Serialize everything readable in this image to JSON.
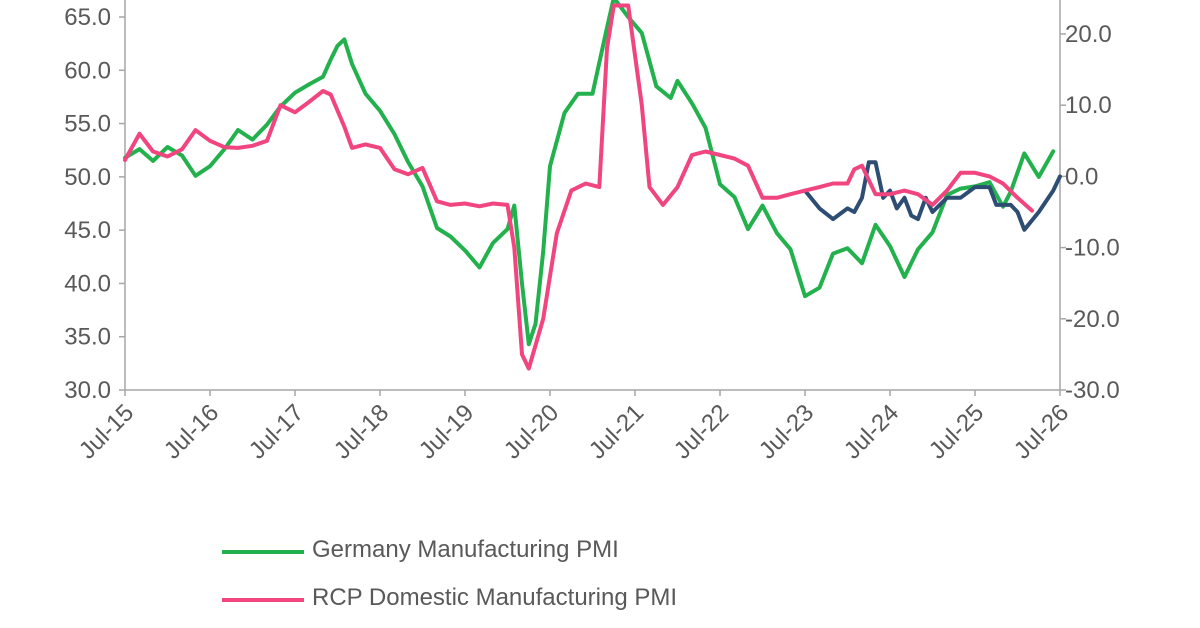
{
  "chart_data": {
    "type": "line",
    "colors": {
      "germany": "#22b14c",
      "rcp": "#f0457e",
      "third": "#2e4d73",
      "axis": "#a6a6a6",
      "text": "#595959"
    },
    "x_labels": [
      "Jul-15",
      "Jul-16",
      "Jul-17",
      "Jul-18",
      "Jul-19",
      "Jul-20",
      "Jul-21",
      "Jul-22",
      "Jul-23",
      "Jul-24",
      "Jul-25",
      "Jul-26"
    ],
    "x_range": [
      2015.5,
      2026.5
    ],
    "left_axis": {
      "ticks": [
        "30.0",
        "35.0",
        "40.0",
        "45.0",
        "50.0",
        "55.0",
        "60.0",
        "65.0"
      ],
      "range": [
        30,
        65
      ]
    },
    "right_axis": {
      "ticks": [
        "-30.0",
        "-20.0",
        "-10.0",
        "0.0",
        "10.0",
        "20.0"
      ],
      "range": [
        -30,
        20
      ]
    },
    "series": [
      {
        "key": "germany",
        "name": "Germany Manufacturing PMI",
        "axis": "left",
        "points": [
          [
            2015.5,
            51.8
          ],
          [
            2015.67,
            52.6
          ],
          [
            2015.83,
            51.5
          ],
          [
            2016.0,
            52.8
          ],
          [
            2016.17,
            52.0
          ],
          [
            2016.33,
            50.1
          ],
          [
            2016.5,
            51.0
          ],
          [
            2016.67,
            52.6
          ],
          [
            2016.83,
            54.4
          ],
          [
            2017.0,
            53.5
          ],
          [
            2017.17,
            54.9
          ],
          [
            2017.33,
            56.6
          ],
          [
            2017.5,
            57.9
          ],
          [
            2017.67,
            58.7
          ],
          [
            2017.83,
            59.4
          ],
          [
            2017.92,
            61.0
          ],
          [
            2018.0,
            62.3
          ],
          [
            2018.08,
            62.9
          ],
          [
            2018.17,
            60.6
          ],
          [
            2018.33,
            57.8
          ],
          [
            2018.5,
            56.2
          ],
          [
            2018.67,
            54.0
          ],
          [
            2018.83,
            51.4
          ],
          [
            2019.0,
            49.1
          ],
          [
            2019.17,
            45.2
          ],
          [
            2019.33,
            44.4
          ],
          [
            2019.5,
            43.1
          ],
          [
            2019.67,
            41.5
          ],
          [
            2019.83,
            43.8
          ],
          [
            2020.0,
            45.1
          ],
          [
            2020.08,
            47.3
          ],
          [
            2020.17,
            40.0
          ],
          [
            2020.25,
            34.3
          ],
          [
            2020.33,
            36.2
          ],
          [
            2020.42,
            43.0
          ],
          [
            2020.5,
            51.0
          ],
          [
            2020.67,
            56.0
          ],
          [
            2020.83,
            57.8
          ],
          [
            2021.0,
            57.8
          ],
          [
            2021.17,
            64.0
          ],
          [
            2021.25,
            66.8
          ],
          [
            2021.42,
            65.0
          ],
          [
            2021.58,
            63.5
          ],
          [
            2021.75,
            58.5
          ],
          [
            2021.92,
            57.4
          ],
          [
            2022.0,
            59.0
          ],
          [
            2022.17,
            56.9
          ],
          [
            2022.33,
            54.6
          ],
          [
            2022.5,
            49.3
          ],
          [
            2022.67,
            48.1
          ],
          [
            2022.83,
            45.1
          ],
          [
            2023.0,
            47.3
          ],
          [
            2023.17,
            44.7
          ],
          [
            2023.33,
            43.2
          ],
          [
            2023.5,
            38.8
          ],
          [
            2023.67,
            39.6
          ],
          [
            2023.83,
            42.8
          ],
          [
            2024.0,
            43.3
          ],
          [
            2024.17,
            41.9
          ],
          [
            2024.33,
            45.5
          ],
          [
            2024.5,
            43.5
          ],
          [
            2024.67,
            40.6
          ],
          [
            2024.83,
            43.2
          ],
          [
            2025.0,
            44.8
          ],
          [
            2025.17,
            48.3
          ],
          [
            2025.33,
            48.9
          ],
          [
            2025.5,
            49.1
          ],
          [
            2025.67,
            49.5
          ],
          [
            2025.83,
            47.2
          ],
          [
            2025.92,
            48.6
          ],
          [
            2026.08,
            52.2
          ],
          [
            2026.25,
            50.0
          ],
          [
            2026.42,
            52.4
          ]
        ]
      },
      {
        "key": "rcp",
        "name": "RCP Domestic Manufacturing PMI",
        "axis": "right",
        "points": [
          [
            2015.5,
            2.3
          ],
          [
            2015.67,
            6.0
          ],
          [
            2015.83,
            3.5
          ],
          [
            2016.0,
            2.8
          ],
          [
            2016.17,
            3.8
          ],
          [
            2016.33,
            6.5
          ],
          [
            2016.5,
            5.0
          ],
          [
            2016.67,
            4.1
          ],
          [
            2016.83,
            4.0
          ],
          [
            2017.0,
            4.3
          ],
          [
            2017.17,
            5.0
          ],
          [
            2017.33,
            10.0
          ],
          [
            2017.5,
            9.0
          ],
          [
            2017.67,
            10.5
          ],
          [
            2017.83,
            12.0
          ],
          [
            2017.92,
            11.5
          ],
          [
            2018.08,
            7.0
          ],
          [
            2018.17,
            4.0
          ],
          [
            2018.33,
            4.5
          ],
          [
            2018.5,
            4.0
          ],
          [
            2018.67,
            1.0
          ],
          [
            2018.83,
            0.3
          ],
          [
            2019.0,
            1.2
          ],
          [
            2019.17,
            -3.5
          ],
          [
            2019.33,
            -4.0
          ],
          [
            2019.5,
            -3.8
          ],
          [
            2019.67,
            -4.2
          ],
          [
            2019.83,
            -3.8
          ],
          [
            2020.0,
            -4.0
          ],
          [
            2020.08,
            -10.0
          ],
          [
            2020.17,
            -25.0
          ],
          [
            2020.25,
            -27.0
          ],
          [
            2020.42,
            -20.0
          ],
          [
            2020.58,
            -8.0
          ],
          [
            2020.75,
            -2.0
          ],
          [
            2020.92,
            -1.0
          ],
          [
            2021.08,
            -1.5
          ],
          [
            2021.17,
            18.0
          ],
          [
            2021.25,
            24.0
          ],
          [
            2021.42,
            24.0
          ],
          [
            2021.58,
            10.0
          ],
          [
            2021.67,
            -1.5
          ],
          [
            2021.83,
            -4.0
          ],
          [
            2022.0,
            -1.5
          ],
          [
            2022.17,
            3.0
          ],
          [
            2022.33,
            3.5
          ],
          [
            2022.5,
            3.0
          ],
          [
            2022.67,
            2.5
          ],
          [
            2022.83,
            1.5
          ],
          [
            2023.0,
            -3.0
          ],
          [
            2023.17,
            -3.0
          ],
          [
            2023.33,
            -2.5
          ],
          [
            2023.5,
            -2.0
          ],
          [
            2023.67,
            -1.5
          ],
          [
            2023.83,
            -1.0
          ],
          [
            2024.0,
            -1.0
          ],
          [
            2024.08,
            1.0
          ],
          [
            2024.17,
            1.5
          ],
          [
            2024.33,
            -2.5
          ],
          [
            2024.5,
            -2.5
          ],
          [
            2024.67,
            -2.0
          ],
          [
            2024.83,
            -2.5
          ],
          [
            2025.0,
            -4.0
          ],
          [
            2025.17,
            -2.0
          ],
          [
            2025.33,
            0.5
          ],
          [
            2025.5,
            0.5
          ],
          [
            2025.67,
            0.0
          ],
          [
            2025.83,
            -1.0
          ],
          [
            2026.0,
            -3.0
          ],
          [
            2026.17,
            -4.8
          ]
        ]
      },
      {
        "key": "third",
        "name": "",
        "axis": "right",
        "points": [
          [
            2023.5,
            -2.0
          ],
          [
            2023.67,
            -4.5
          ],
          [
            2023.83,
            -6.0
          ],
          [
            2024.0,
            -4.5
          ],
          [
            2024.08,
            -5.0
          ],
          [
            2024.17,
            -3.0
          ],
          [
            2024.25,
            2.0
          ],
          [
            2024.33,
            2.0
          ],
          [
            2024.42,
            -3.0
          ],
          [
            2024.5,
            -2.0
          ],
          [
            2024.58,
            -4.5
          ],
          [
            2024.67,
            -3.0
          ],
          [
            2024.75,
            -5.5
          ],
          [
            2024.83,
            -6.0
          ],
          [
            2024.92,
            -3.0
          ],
          [
            2025.0,
            -5.0
          ],
          [
            2025.17,
            -3.0
          ],
          [
            2025.33,
            -3.0
          ],
          [
            2025.5,
            -1.5
          ],
          [
            2025.67,
            -1.5
          ],
          [
            2025.75,
            -4.0
          ],
          [
            2025.92,
            -4.0
          ],
          [
            2026.0,
            -5.0
          ],
          [
            2026.08,
            -7.5
          ],
          [
            2026.25,
            -5.0
          ],
          [
            2026.42,
            -2.0
          ],
          [
            2026.5,
            0.0
          ]
        ]
      }
    ]
  },
  "legend": {
    "items": [
      {
        "label": "Germany Manufacturing PMI",
        "color": "#22b14c"
      },
      {
        "label": "RCP Domestic Manufacturing PMI",
        "color": "#f0457e"
      }
    ]
  }
}
